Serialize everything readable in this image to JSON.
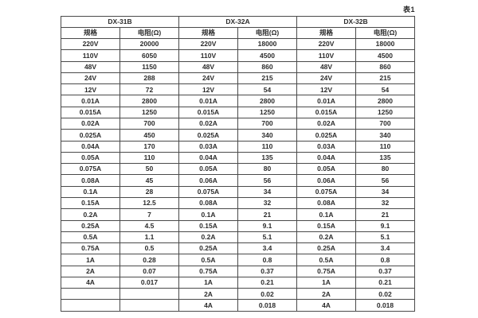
{
  "caption": "表1",
  "colors": {
    "background": "#ffffff",
    "border": "#4a4a4a",
    "text": "#2b2b2b"
  },
  "table": {
    "groups": [
      {
        "name": "DX-31B"
      },
      {
        "name": "DX-32A"
      },
      {
        "name": "DX-32B"
      }
    ],
    "col_headers": [
      "规格",
      "电阻(Ω)"
    ],
    "rows": [
      [
        "220V",
        "20000",
        "220V",
        "18000",
        "220V",
        "18000"
      ],
      [
        "110V",
        "6050",
        "110V",
        "4500",
        "110V",
        "4500"
      ],
      [
        "48V",
        "1150",
        "48V",
        "860",
        "48V",
        "860"
      ],
      [
        "24V",
        "288",
        "24V",
        "215",
        "24V",
        "215"
      ],
      [
        "12V",
        "72",
        "12V",
        "54",
        "12V",
        "54"
      ],
      [
        "0.01A",
        "2800",
        "0.01A",
        "2800",
        "0.01A",
        "2800"
      ],
      [
        "0.015A",
        "1250",
        "0.015A",
        "1250",
        "0.015A",
        "1250"
      ],
      [
        "0.02A",
        "700",
        "0.02A",
        "700",
        "0.02A",
        "700"
      ],
      [
        "0.025A",
        "450",
        "0.025A",
        "340",
        "0.025A",
        "340"
      ],
      [
        "0.04A",
        "170",
        "0.03A",
        "110",
        "0.03A",
        "110"
      ],
      [
        "0.05A",
        "110",
        "0.04A",
        "135",
        "0.04A",
        "135"
      ],
      [
        "0.075A",
        "50",
        "0.05A",
        "80",
        "0.05A",
        "80"
      ],
      [
        "0.08A",
        "45",
        "0.06A",
        "56",
        "0.06A",
        "56"
      ],
      [
        "0.1A",
        "28",
        "0.075A",
        "34",
        "0.075A",
        "34"
      ],
      [
        "0.15A",
        "12.5",
        "0.08A",
        "32",
        "0.08A",
        "32"
      ],
      [
        "0.2A",
        "7",
        "0.1A",
        "21",
        "0.1A",
        "21"
      ],
      [
        "0.25A",
        "4.5",
        "0.15A",
        "9.1",
        "0.15A",
        "9.1"
      ],
      [
        "0.5A",
        "1.1",
        "0.2A",
        "5.1",
        "0.2A",
        "5.1"
      ],
      [
        "0.75A",
        "0.5",
        "0.25A",
        "3.4",
        "0.25A",
        "3.4"
      ],
      [
        "1A",
        "0.28",
        "0.5A",
        "0.8",
        "0.5A",
        "0.8"
      ],
      [
        "2A",
        "0.07",
        "0.75A",
        "0.37",
        "0.75A",
        "0.37"
      ],
      [
        "4A",
        "0.017",
        "1A",
        "0.21",
        "1A",
        "0.21"
      ],
      [
        "",
        "",
        "2A",
        "0.02",
        "2A",
        "0.02"
      ],
      [
        "",
        "",
        "4A",
        "0.018",
        "4A",
        "0.018"
      ]
    ]
  }
}
